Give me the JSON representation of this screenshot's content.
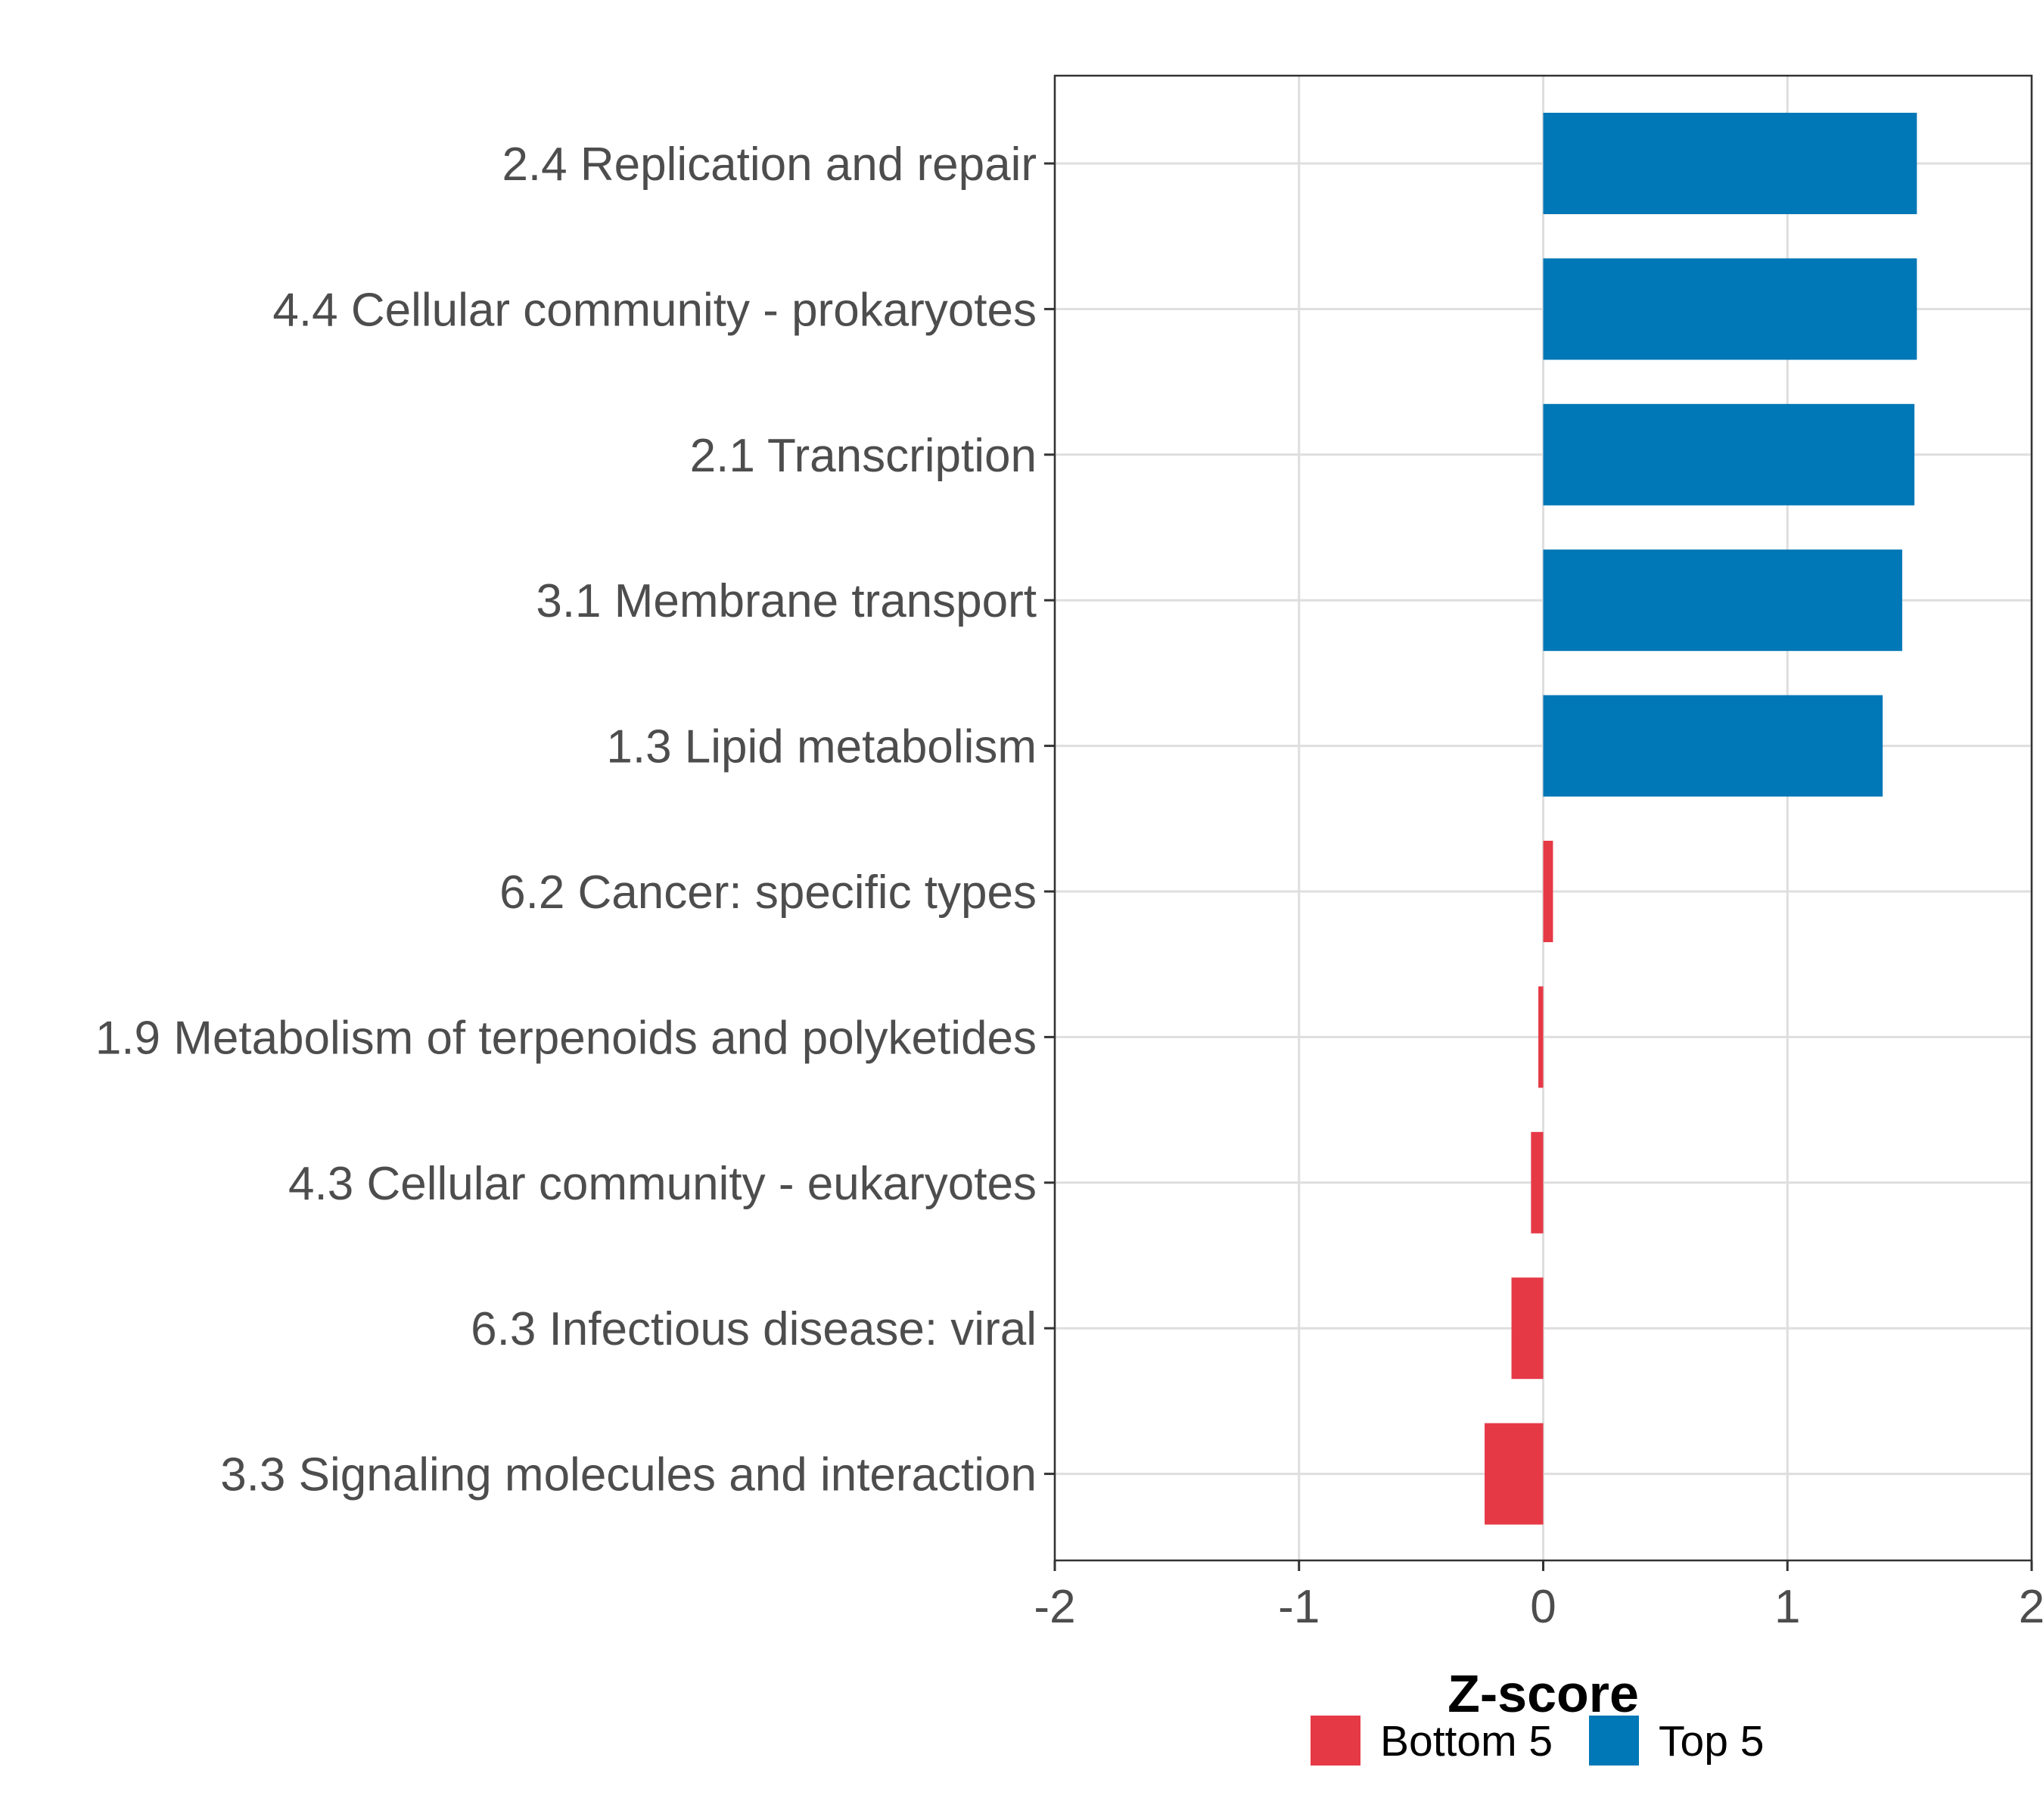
{
  "chart_data": {
    "type": "bar",
    "orientation": "horizontal",
    "title": "",
    "xlabel": "Z-score",
    "ylabel": "",
    "xlim": [
      -2,
      2
    ],
    "xticks": [
      "-2",
      "-1",
      "0",
      "1",
      "2"
    ],
    "grid": true,
    "legend_position": "bottom",
    "categories": [
      "2.4 Replication and repair",
      "4.4 Cellular community - prokaryotes",
      "2.1 Transcription",
      "3.1 Membrane transport",
      "1.3 Lipid metabolism",
      "6.2 Cancer: specific types",
      "1.9 Metabolism of terpenoids and polyketides",
      "4.3 Cellular community - eukaryotes",
      "6.3 Infectious disease: viral",
      "3.3 Signaling molecules and interaction"
    ],
    "values": [
      1.53,
      1.53,
      1.52,
      1.47,
      1.39,
      0.04,
      -0.02,
      -0.05,
      -0.13,
      -0.24
    ],
    "groups": [
      "Top 5",
      "Top 5",
      "Top 5",
      "Top 5",
      "Top 5",
      "Bottom 5",
      "Bottom 5",
      "Bottom 5",
      "Bottom 5",
      "Bottom 5"
    ],
    "legend": [
      {
        "name": "Bottom 5",
        "color": "#e63946"
      },
      {
        "name": "Top 5",
        "color": "#0077b6"
      }
    ]
  }
}
